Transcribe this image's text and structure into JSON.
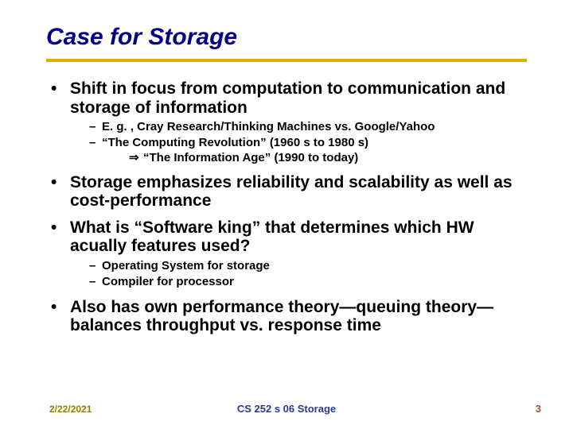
{
  "title": "Case for Storage",
  "colors": {
    "title": "#000088",
    "rule": "#e0b000",
    "date": "#9a7a00",
    "course": "#2a3a99",
    "pagenum": "#b84a2a",
    "text": "#000000",
    "background": "#ffffff"
  },
  "bullets": [
    {
      "text": "Shift in focus from computation to communication and storage of information",
      "sub": [
        {
          "text": "E. g. , Cray Research/Thinking Machines vs. Google/Yahoo"
        },
        {
          "text": "“The Computing Revolution” (1960 s to 1980 s)",
          "arrow_line": "“The Information Age” (1990 to today)"
        }
      ]
    },
    {
      "text": "Storage emphasizes reliability and scalability as well as cost-performance",
      "sub": []
    },
    {
      "text": "What is “Software king” that determines which HW acually features used?",
      "sub": [
        {
          "text": "Operating System for storage"
        },
        {
          "text": "Compiler for processor"
        }
      ]
    },
    {
      "text": "Also has own performance theory—queuing theory—balances throughput vs. response time",
      "sub": []
    }
  ],
  "footer": {
    "date": "2/22/2021",
    "course": "CS 252 s 06 Storage",
    "pagenum": "3"
  },
  "arrow_glyph": "⇒"
}
